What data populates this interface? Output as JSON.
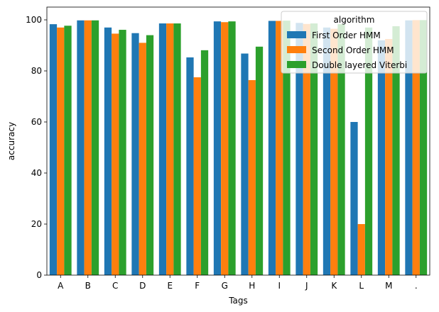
{
  "chart_data": {
    "type": "bar",
    "title": "",
    "xlabel": "Tags",
    "ylabel": "accuracy",
    "ylim": [
      0,
      105
    ],
    "yticks": [
      0,
      20,
      40,
      60,
      80,
      100
    ],
    "categories": [
      "A",
      "B",
      "C",
      "D",
      "E",
      "F",
      "G",
      "H",
      "I",
      "J",
      "K",
      "L",
      "M",
      "."
    ],
    "series": [
      {
        "name": "First Order HMM",
        "color": "#1f77b4",
        "values": [
          98.3,
          99.8,
          97.0,
          94.8,
          98.6,
          85.3,
          99.4,
          86.8,
          99.6,
          98.8,
          97.0,
          60.0,
          92.0,
          99.8
        ]
      },
      {
        "name": "Second Order HMM",
        "color": "#ff7f0e",
        "values": [
          97.0,
          99.8,
          94.6,
          91.0,
          98.6,
          77.5,
          99.1,
          76.4,
          99.6,
          98.4,
          96.5,
          20.0,
          92.5,
          99.9
        ]
      },
      {
        "name": "Double layered Viterbi",
        "color": "#2ca02c",
        "values": [
          97.7,
          99.8,
          96.1,
          94.0,
          98.6,
          88.1,
          99.4,
          89.5,
          99.7,
          98.6,
          98.3,
          97.0,
          97.5,
          99.9
        ]
      }
    ],
    "grid": false,
    "legend": {
      "title": "algorithm",
      "placement": "top-right"
    }
  }
}
